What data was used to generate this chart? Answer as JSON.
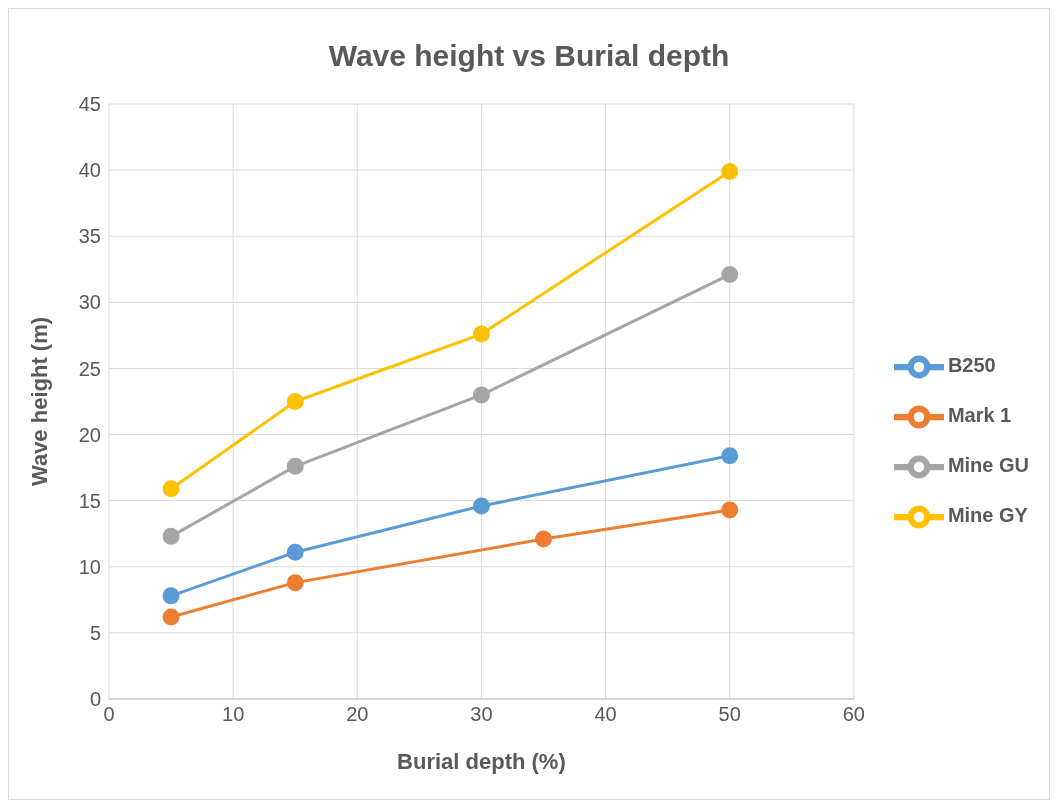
{
  "chart_data": {
    "type": "line",
    "title": "Wave height vs Burial depth",
    "xlabel": "Burial depth (%)",
    "ylabel": "Wave height  (m)",
    "series": [
      {
        "name": "Mark 1",
        "color": "#ed7d31",
        "x": [
          5,
          15,
          35,
          50
        ],
        "values": [
          6.2,
          8.8,
          12.1,
          14.3
        ]
      },
      {
        "name": "B250",
        "color": "#5b9bd5",
        "x": [
          5,
          15,
          30,
          50
        ],
        "values": [
          7.8,
          11.1,
          14.6,
          18.4
        ]
      },
      {
        "name": "Mine GU",
        "color": "#a5a5a5",
        "x": [
          5,
          15,
          30,
          50
        ],
        "values": [
          12.3,
          17.6,
          23.0,
          32.1
        ]
      },
      {
        "name": "Mine GY",
        "color": "#ffc000",
        "x": [
          5,
          15,
          30,
          50
        ],
        "values": [
          15.9,
          22.5,
          27.6,
          39.9
        ]
      }
    ],
    "xlim": [
      0,
      60
    ],
    "xticks": [
      0,
      10,
      20,
      30,
      40,
      50,
      60
    ],
    "ylim": [
      0,
      45
    ],
    "yticks": [
      0,
      5,
      10,
      15,
      20,
      25,
      30,
      35,
      40,
      45
    ],
    "grid": true,
    "legend": "right",
    "marker": "circle",
    "line_style": "solid"
  }
}
